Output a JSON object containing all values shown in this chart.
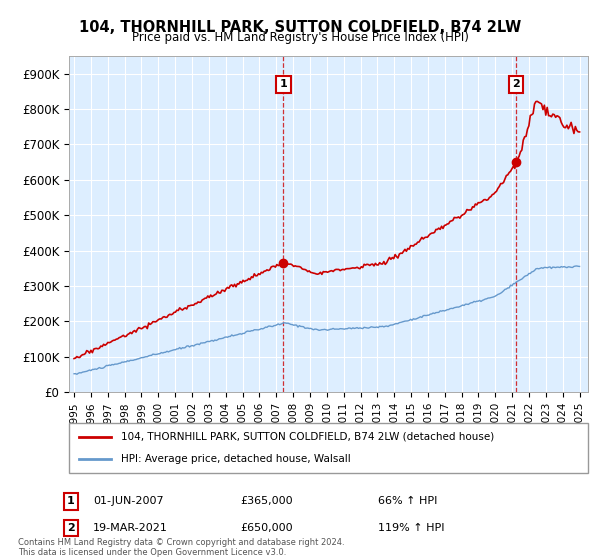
{
  "title1": "104, THORNHILL PARK, SUTTON COLDFIELD, B74 2LW",
  "title2": "Price paid vs. HM Land Registry's House Price Index (HPI)",
  "legend_label1": "104, THORNHILL PARK, SUTTON COLDFIELD, B74 2LW (detached house)",
  "legend_label2": "HPI: Average price, detached house, Walsall",
  "sale1_label": "01-JUN-2007",
  "sale1_price": "£365,000",
  "sale1_hpi": "66% ↑ HPI",
  "sale2_label": "19-MAR-2021",
  "sale2_price": "£650,000",
  "sale2_hpi": "119% ↑ HPI",
  "footnote": "Contains HM Land Registry data © Crown copyright and database right 2024.\nThis data is licensed under the Open Government Licence v3.0.",
  "red_color": "#cc0000",
  "blue_color": "#6699cc",
  "chart_bg": "#ddeeff",
  "ylim_max": 950000,
  "yticks": [
    0,
    100000,
    200000,
    300000,
    400000,
    500000,
    600000,
    700000,
    800000,
    900000
  ],
  "ytick_labels": [
    "£0",
    "£100K",
    "£200K",
    "£300K",
    "£400K",
    "£500K",
    "£600K",
    "£700K",
    "£800K",
    "£900K"
  ],
  "xtick_years": [
    1995,
    1996,
    1997,
    1998,
    1999,
    2000,
    2001,
    2002,
    2003,
    2004,
    2005,
    2006,
    2007,
    2008,
    2009,
    2010,
    2011,
    2012,
    2013,
    2014,
    2015,
    2016,
    2017,
    2018,
    2019,
    2020,
    2021,
    2022,
    2023,
    2024,
    2025
  ],
  "sale1_x": 2007.42,
  "sale1_y": 365000,
  "sale2_x": 2021.21,
  "sale2_y": 650000,
  "background_color": "#ffffff"
}
